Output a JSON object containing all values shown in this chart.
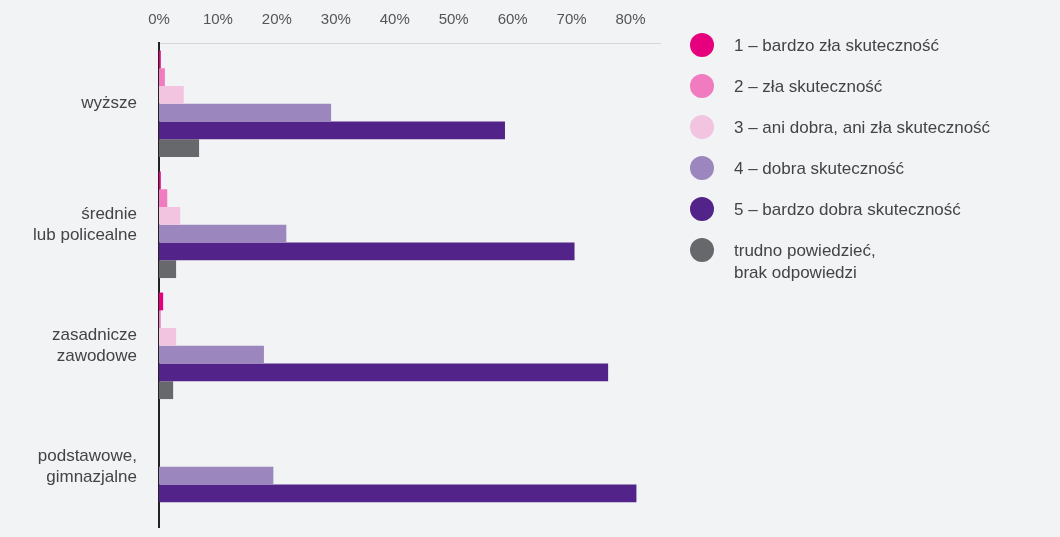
{
  "chart_data": {
    "type": "bar",
    "orientation": "horizontal",
    "categories": [
      "wyższe",
      "średnie\nlub policealne",
      "zasadnicze\nzawodowe",
      "podstawowe,\ngimnazjalne"
    ],
    "series": [
      {
        "name": "1 – bardzo zła skuteczność",
        "color": "#e6007e",
        "values": [
          0.3,
          0.3,
          0.7,
          0
        ]
      },
      {
        "name": "2 –  zła skuteczność",
        "color": "#f07cbf",
        "values": [
          1.0,
          1.4,
          0.3,
          0
        ]
      },
      {
        "name": "3 – ani dobra, ani zła skuteczność",
        "color": "#f2c4e0",
        "values": [
          4.2,
          3.6,
          2.9,
          0
        ]
      },
      {
        "name": "4 – dobra skuteczność",
        "color": "#9b86bd",
        "values": [
          29.2,
          21.6,
          17.8,
          19.4
        ]
      },
      {
        "name": "5 – bardzo dobra skuteczność",
        "color": "#52248a",
        "values": [
          58.7,
          70.5,
          76.2,
          81.0
        ]
      },
      {
        "name": "trudno powiedzieć,\nbrak odpowiedzi",
        "color": "#67686b",
        "values": [
          6.8,
          2.9,
          2.4,
          null
        ]
      }
    ],
    "xlim": [
      0,
      85
    ],
    "xticks": [
      {
        "value": 0,
        "label": "0%"
      },
      {
        "value": 10,
        "label": "10%"
      },
      {
        "value": 20,
        "label": "20%"
      },
      {
        "value": 30,
        "label": "30%"
      },
      {
        "value": 40,
        "label": "40%"
      },
      {
        "value": 50,
        "label": "50%"
      },
      {
        "value": 60,
        "label": "60%"
      },
      {
        "value": 70,
        "label": "70%"
      },
      {
        "value": 80,
        "label": "80%"
      }
    ],
    "grid": false,
    "legend": "right"
  }
}
